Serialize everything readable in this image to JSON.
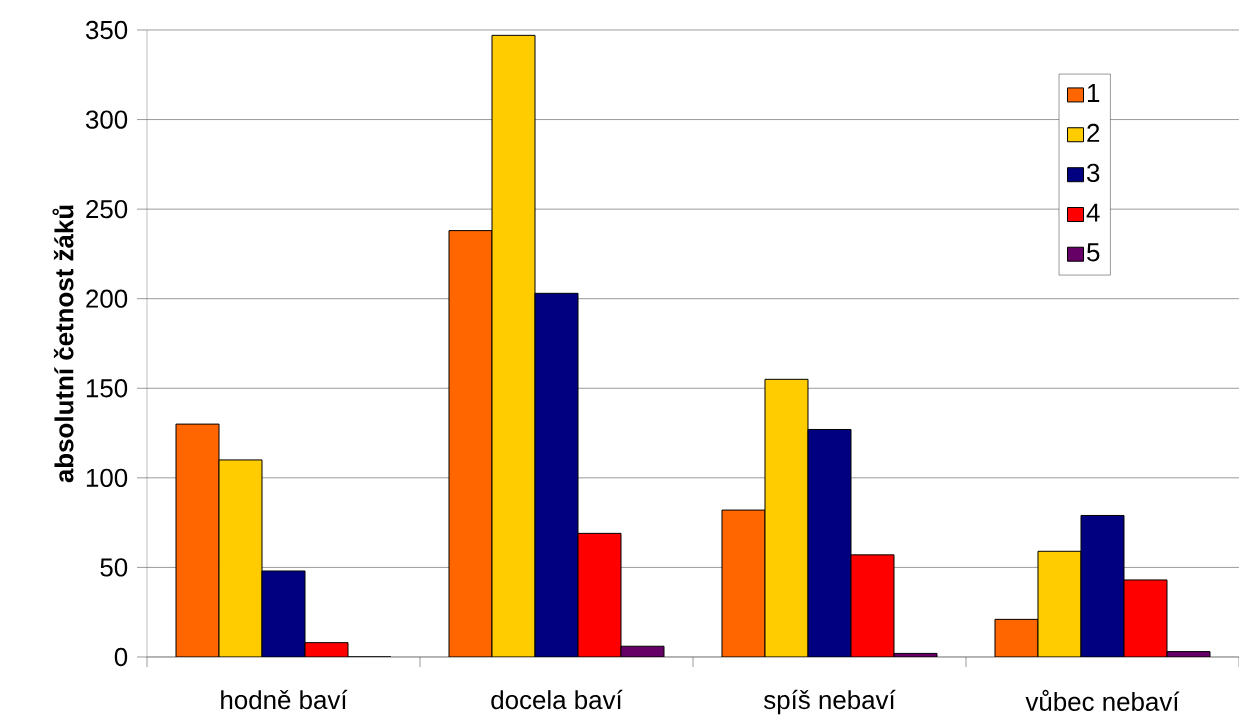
{
  "chart_data": {
    "type": "bar",
    "ylabel": "absolutní četnost žáků",
    "categories": [
      "hodně baví",
      "docela baví",
      "spíš nebaví",
      "vůbec  nebaví"
    ],
    "series": [
      {
        "name": "1",
        "color": "#ff6600",
        "values": [
          130,
          238,
          82,
          21
        ]
      },
      {
        "name": "2",
        "color": "#ffcc00",
        "values": [
          110,
          347,
          155,
          59
        ]
      },
      {
        "name": "3",
        "color": "#000080",
        "values": [
          48,
          203,
          127,
          79
        ]
      },
      {
        "name": "4",
        "color": "#ff0000",
        "values": [
          8,
          69,
          57,
          43
        ]
      },
      {
        "name": "5",
        "color": "#660066",
        "values": [
          0,
          6,
          2,
          3
        ]
      }
    ],
    "ylim": [
      0,
      350
    ],
    "yticks": [
      0,
      50,
      100,
      150,
      200,
      250,
      300,
      350
    ],
    "grid": "y",
    "legend": "top right"
  }
}
